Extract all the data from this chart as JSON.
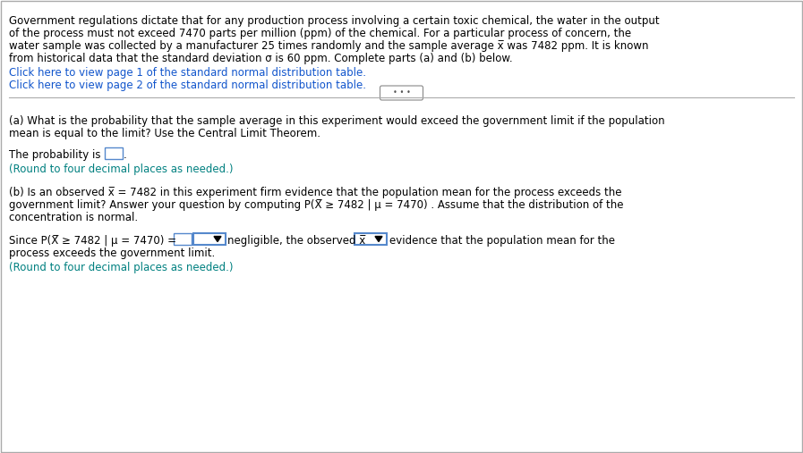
{
  "bg_color": "#ffffff",
  "border_color": "#cccccc",
  "text_color": "#000000",
  "blue_link_color": "#1155CC",
  "teal_highlight": "#008080",
  "link1": "Click here to view page 1 of the standard normal distribution table.",
  "link2": "Click here to view page 2 of the standard normal distribution table.",
  "round_note_a": "(Round to four decimal places as needed.)",
  "round_note_b": "(Round to four decimal places as needed.)",
  "lines_para1": [
    "Government regulations dictate that for any production process involving a certain toxic chemical, the water in the output",
    "of the process must not exceed 7470 parts per million (ppm) of the chemical. For a particular process of concern, the",
    "water sample was collected by a manufacturer 25 times randomly and the sample average x̅ was 7482 ppm. It is known",
    "from historical data that the standard deviation σ is 60 ppm. Complete parts (a) and (b) below."
  ],
  "lines_a": [
    "(a) What is the probability that the sample average in this experiment would exceed the government limit if the population",
    "mean is equal to the limit? Use the Central Limit Theorem."
  ],
  "lines_b": [
    "(b) Is an observed x̅ = 7482 in this experiment firm evidence that the population mean for the process exceeds the",
    "government limit? Answer your question by computing P(Χ̅ ≥ 7482 | μ = 7470) . Assume that the distribution of the",
    "concentration is normal."
  ],
  "since_str": "Since P(Χ̅ ≥ 7482 | μ = 7470) =",
  "negligible_text": "negligible, the observed x̅",
  "evidence_text": "evidence that the population mean for the",
  "process_text": "process exceeds the government limit.",
  "prob_label": "The probability is"
}
